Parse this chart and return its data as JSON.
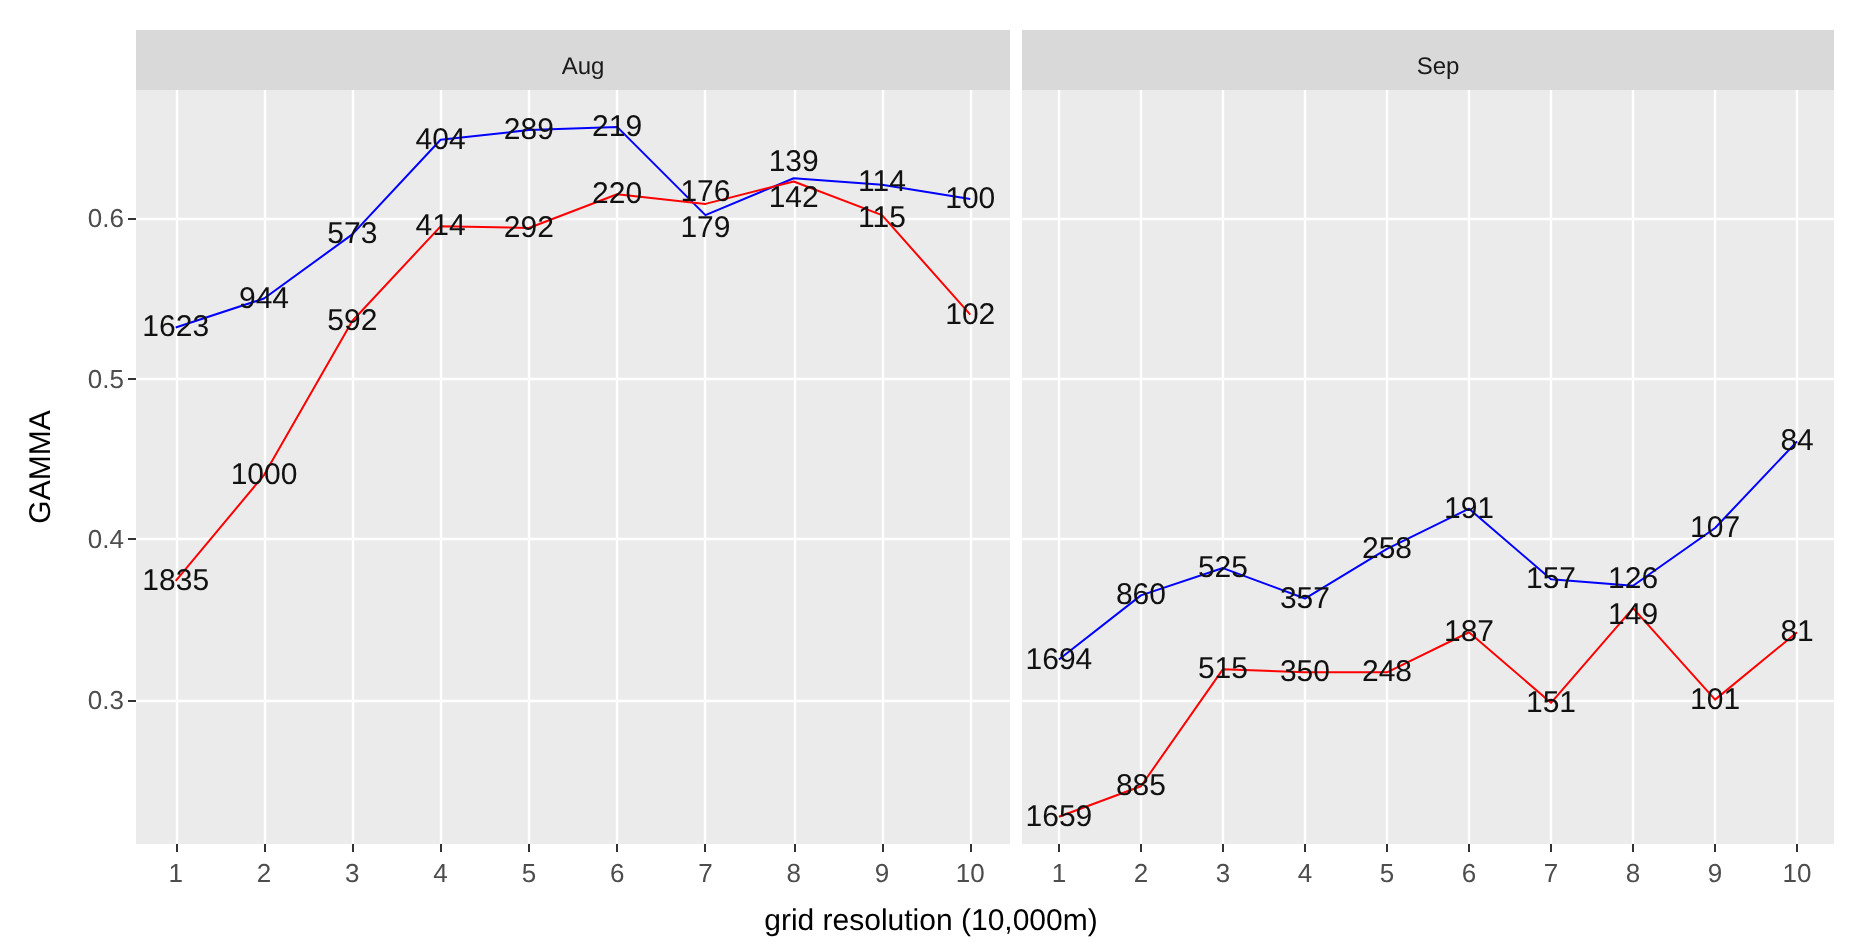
{
  "chart_data": [
    {
      "type": "line",
      "title": "Aug",
      "xlabel": "grid resolution (10,000m)",
      "ylabel": "GAMMA",
      "x": [
        1,
        2,
        3,
        4,
        5,
        6,
        7,
        8,
        9,
        10
      ],
      "xlim": [
        0.55,
        10.45
      ],
      "xticks": [
        1,
        2,
        3,
        4,
        5,
        6,
        7,
        8,
        9,
        10
      ],
      "ylim": [
        0.21,
        0.68
      ],
      "yticks": [
        0.3,
        0.4,
        0.5,
        0.6
      ],
      "grid": true,
      "marker": "none",
      "line_style": "solid",
      "series": [
        {
          "color": "#0000ff",
          "values": [
            0.532,
            0.55,
            0.59,
            0.649,
            0.655,
            0.657,
            0.602,
            0.625,
            0.621,
            0.612
          ]
        },
        {
          "color": "#ff0000",
          "values": [
            0.374,
            0.44,
            0.536,
            0.595,
            0.594,
            0.615,
            0.609,
            0.623,
            0.602,
            0.54
          ]
        }
      ],
      "annotations": [
        {
          "text": "1623",
          "x": 1,
          "y": 0.532
        },
        {
          "text": "944",
          "x": 2,
          "y": 0.55
        },
        {
          "text": "573",
          "x": 3,
          "y": 0.59
        },
        {
          "text": "404",
          "x": 4,
          "y": 0.649
        },
        {
          "text": "289",
          "x": 5,
          "y": 0.655
        },
        {
          "text": "219",
          "x": 6,
          "y": 0.657
        },
        {
          "text": "179",
          "x": 7,
          "y": 0.602
        },
        {
          "text": "139",
          "x": 8,
          "y": 0.625
        },
        {
          "text": "114",
          "x": 9,
          "y": 0.621
        },
        {
          "text": "100",
          "x": 10,
          "y": 0.612
        },
        {
          "text": "1835",
          "x": 1,
          "y": 0.374
        },
        {
          "text": "1000",
          "x": 2,
          "y": 0.44
        },
        {
          "text": "592",
          "x": 3,
          "y": 0.536
        },
        {
          "text": "414",
          "x": 4,
          "y": 0.595
        },
        {
          "text": "292",
          "x": 5,
          "y": 0.594
        },
        {
          "text": "220",
          "x": 6,
          "y": 0.615
        },
        {
          "text": "176",
          "x": 7,
          "y": 0.609
        },
        {
          "text": "142",
          "x": 8,
          "y": 0.623
        },
        {
          "text": "115",
          "x": 9,
          "y": 0.602
        },
        {
          "text": "102",
          "x": 10,
          "y": 0.54
        }
      ]
    },
    {
      "type": "line",
      "title": "Sep",
      "x": [
        1,
        2,
        3,
        4,
        5,
        6,
        7,
        8,
        9,
        10
      ],
      "xlim": [
        0.55,
        10.45
      ],
      "xticks": [
        1,
        2,
        3,
        4,
        5,
        6,
        7,
        8,
        9,
        10
      ],
      "ylim": [
        0.21,
        0.68
      ],
      "yticks": [
        0.3,
        0.4,
        0.5,
        0.6
      ],
      "tick_labels": "x",
      "grid": true,
      "marker": "none",
      "line_style": "solid",
      "series": [
        {
          "color": "#0000ff",
          "values": [
            0.325,
            0.365,
            0.382,
            0.363,
            0.394,
            0.419,
            0.375,
            0.371,
            0.407,
            0.461
          ]
        },
        {
          "color": "#ff0000",
          "values": [
            0.227,
            0.246,
            0.319,
            0.317,
            0.317,
            0.342,
            0.298,
            0.357,
            0.3,
            0.342
          ]
        }
      ],
      "annotations": [
        {
          "text": "1694",
          "x": 1,
          "y": 0.325
        },
        {
          "text": "860",
          "x": 2,
          "y": 0.365
        },
        {
          "text": "525",
          "x": 3,
          "y": 0.382
        },
        {
          "text": "357",
          "x": 4,
          "y": 0.363
        },
        {
          "text": "258",
          "x": 5,
          "y": 0.394
        },
        {
          "text": "191",
          "x": 6,
          "y": 0.419
        },
        {
          "text": "157",
          "x": 7,
          "y": 0.375
        },
        {
          "text": "126",
          "x": 8,
          "y": 0.371
        },
        {
          "text": "107",
          "x": 9,
          "y": 0.407
        },
        {
          "text": "84",
          "x": 10,
          "y": 0.461
        },
        {
          "text": "1659",
          "x": 1,
          "y": 0.227
        },
        {
          "text": "885",
          "x": 2,
          "y": 0.246
        },
        {
          "text": "515",
          "x": 3,
          "y": 0.319
        },
        {
          "text": "350",
          "x": 4,
          "y": 0.317
        },
        {
          "text": "248",
          "x": 5,
          "y": 0.317
        },
        {
          "text": "187",
          "x": 6,
          "y": 0.342
        },
        {
          "text": "151",
          "x": 7,
          "y": 0.298
        },
        {
          "text": "149",
          "x": 8,
          "y": 0.357
        },
        {
          "text": "101",
          "x": 9,
          "y": 0.3
        },
        {
          "text": "81",
          "x": 10,
          "y": 0.342
        }
      ]
    }
  ]
}
